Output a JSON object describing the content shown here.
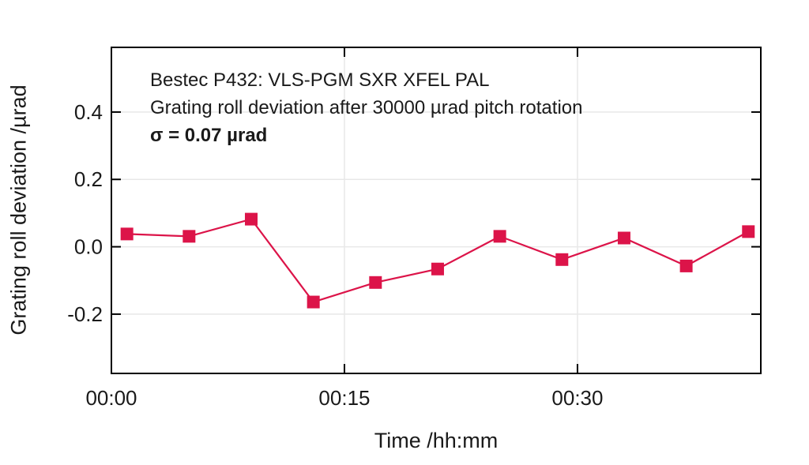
{
  "chart_data": {
    "type": "line",
    "annotation_lines": [
      "Bestec P432: VLS-PGM SXR XFEL PAL",
      "Grating roll deviation after 30000 µrad pitch rotation",
      "σ = 0.07 µrad"
    ],
    "xlabel": "Time /hh:mm",
    "ylabel": "Grating roll deviation /µrad",
    "x_minutes": [
      1,
      5,
      9,
      13,
      17,
      21,
      25,
      29,
      33,
      37,
      41
    ],
    "values": [
      0.038,
      0.031,
      0.082,
      -0.164,
      -0.106,
      -0.066,
      0.031,
      -0.038,
      0.026,
      -0.057,
      0.045
    ],
    "sigma_urad": 0.07,
    "xlim_minutes": [
      0,
      41.8
    ],
    "ylim": [
      -0.376,
      0.592
    ],
    "xticks": [
      {
        "minutes": 0,
        "label": "00:00"
      },
      {
        "minutes": 15,
        "label": "00:15"
      },
      {
        "minutes": 30,
        "label": "00:30"
      }
    ],
    "yticks": [
      {
        "value": 0.4,
        "label": "0.4"
      },
      {
        "value": 0.2,
        "label": "0.2"
      },
      {
        "value": 0.0,
        "label": "0.0"
      },
      {
        "value": -0.2,
        "label": "-0.2"
      }
    ],
    "grid": true,
    "legend": "none",
    "marker": "square",
    "colors": {
      "series": "#DC1449",
      "axis": "#000000",
      "grid": "#e8e8e8",
      "text": "#1a1a1a",
      "background": "#ffffff"
    }
  }
}
